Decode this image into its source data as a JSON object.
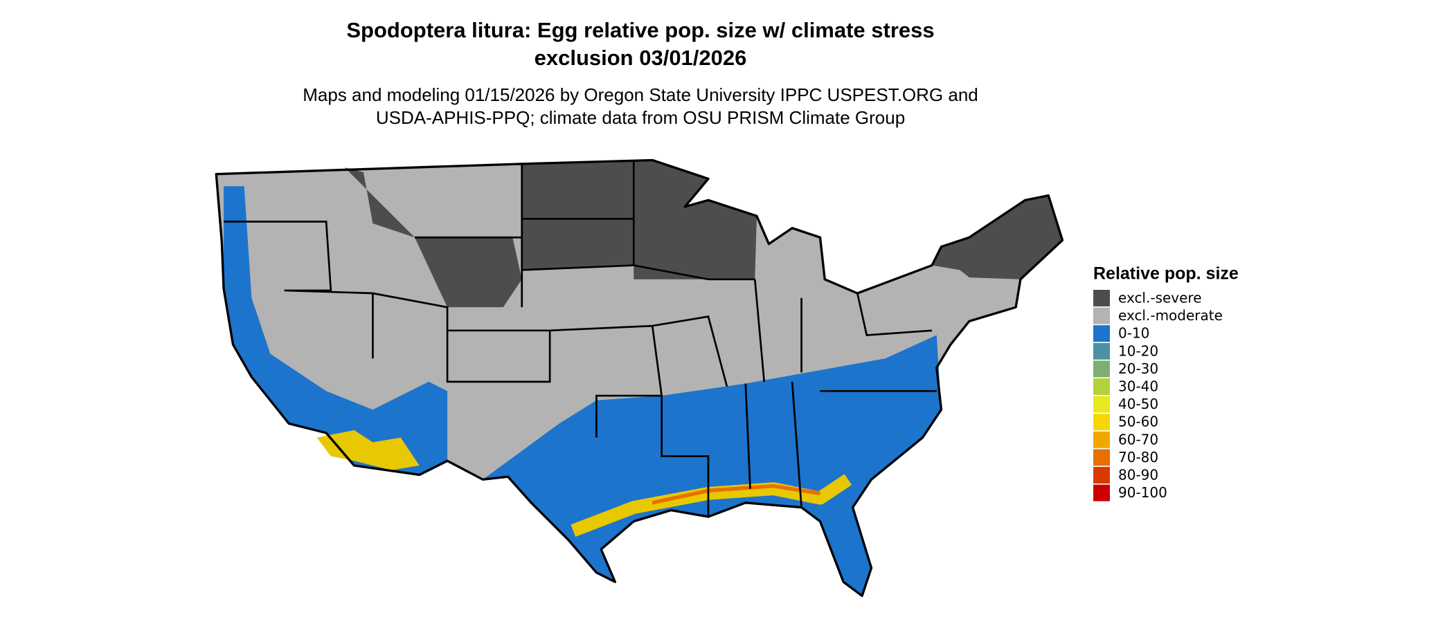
{
  "map": {
    "title": [
      "Spodoptera litura: Egg relative pop. size w/ climate stress",
      "exclusion 03/01/2026"
    ],
    "subtitle": [
      "Maps and modeling 01/15/2026 by Oregon State University IPPC USPEST.ORG and",
      "USDA-APHIS-PPQ; climate data from OSU PRISM Climate Group"
    ],
    "legend": {
      "title": "Relative pop. size",
      "items": [
        {
          "label": "excl.-severe",
          "color": "#4d4d4d"
        },
        {
          "label": "excl.-moderate",
          "color": "#b3b3b3"
        },
        {
          "label": "0-10",
          "color": "#1c74cc"
        },
        {
          "label": "10-20",
          "color": "#4a91a4"
        },
        {
          "label": "20-30",
          "color": "#7fae72"
        },
        {
          "label": "30-40",
          "color": "#b5d03e"
        },
        {
          "label": "40-50",
          "color": "#e8e81e"
        },
        {
          "label": "50-60",
          "color": "#f6d800"
        },
        {
          "label": "60-70",
          "color": "#f0a800"
        },
        {
          "label": "70-80",
          "color": "#e87000"
        },
        {
          "label": "80-90",
          "color": "#d83a00"
        },
        {
          "label": "90-100",
          "color": "#cc0000"
        }
      ]
    }
  }
}
